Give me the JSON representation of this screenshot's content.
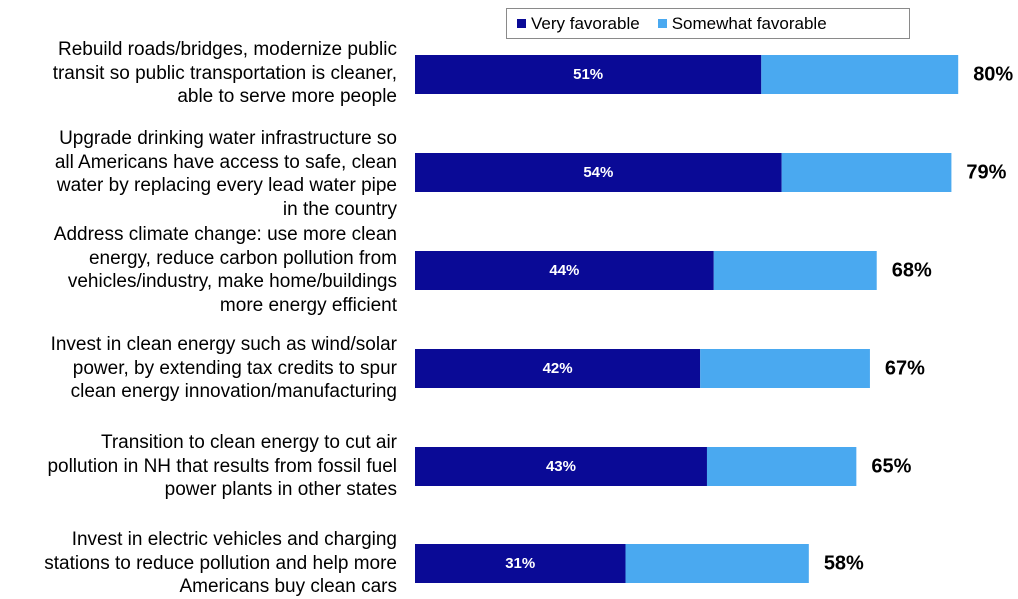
{
  "chart_data": {
    "type": "bar",
    "orientation": "horizontal",
    "stacked": true,
    "categories": [
      [
        "Rebuild roads/bridges, modernize public",
        "transit so public transportation is cleaner,",
        "able to serve more people"
      ],
      [
        "Upgrade drinking water infrastructure so",
        "all Americans have access to safe, clean",
        "water by replacing every lead water pipe",
        "in the country"
      ],
      [
        "Address climate change: use more clean",
        "energy, reduce carbon pollution from",
        "vehicles/industry, make home/buildings",
        "more energy efficient"
      ],
      [
        "Invest in clean energy such as wind/solar",
        "power, by extending tax credits to spur",
        "clean energy innovation/manufacturing"
      ],
      [
        "Transition to clean energy to cut air",
        "pollution in NH that results from fossil fuel",
        "power plants in other states"
      ],
      [
        "Invest in electric vehicles and charging",
        "stations to reduce pollution and help more",
        "Americans buy clean cars"
      ]
    ],
    "series": [
      {
        "name": "Very favorable",
        "color": "#0a0a96",
        "values": [
          51,
          54,
          44,
          42,
          43,
          31
        ],
        "labels": [
          "51%",
          "54%",
          "44%",
          "42%",
          "43%",
          "31%"
        ]
      },
      {
        "name": "Somewhat favorable",
        "color": "#4aa9f0",
        "values": [
          29,
          25,
          24,
          25,
          22,
          27
        ]
      }
    ],
    "totals": [
      80,
      79,
      68,
      67,
      65,
      58
    ],
    "total_labels": [
      "80%",
      "79%",
      "68%",
      "67%",
      "65%",
      "58%"
    ],
    "legend_position": "top",
    "grid": false
  }
}
